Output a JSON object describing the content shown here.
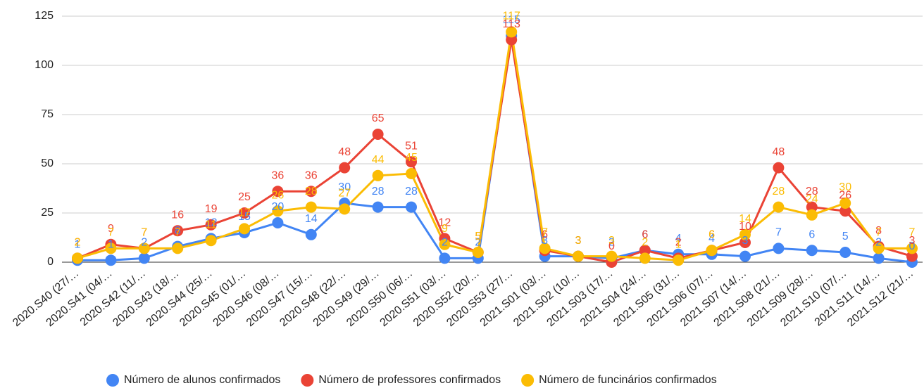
{
  "chart_data": {
    "type": "line",
    "categories": [
      "2020.S40 (27/…",
      "2020.S41 (04/…",
      "2020.S42 (11/…",
      "2020.S43 (18/…",
      "2020.S44 (25/…",
      "2020.S45 (01/…",
      "2020.S46 (08/…",
      "2020.S47 (15/…",
      "2020.S48 (22/…",
      "2020.S49 (29/…",
      "2020.S50 (06/…",
      "2020.S51 (03/…",
      "2020.S52 (20/…",
      "2020.S53 (27/…",
      "2021.S01 (03/…",
      "2021.S02 (10/…",
      "2021.S03 (17/…",
      "2021.S04 (24/…",
      "2021.S05 (31/…",
      "2021.S06 (07/…",
      "2021.S07 (14/…",
      "2021.S08 (21/…",
      "2021.S09 (28/…",
      "2021.S10 (07/…",
      "2021.S11 (14/…",
      "2021.S12 (21/…"
    ],
    "series": [
      {
        "name": "Número de alunos confirmados",
        "color": "#4285f4",
        "values": [
          1,
          1,
          2,
          8,
          12,
          15,
          20,
          14,
          30,
          28,
          28,
          2,
          2,
          115,
          3,
          3,
          2,
          6,
          4,
          4,
          3,
          7,
          6,
          5,
          2,
          0
        ]
      },
      {
        "name": "Número de professores confirmados",
        "color": "#ea4335",
        "values": [
          2,
          9,
          7,
          16,
          19,
          25,
          36,
          36,
          48,
          65,
          51,
          12,
          5,
          113,
          6,
          3,
          0,
          6,
          2,
          6,
          10,
          48,
          28,
          26,
          8,
          3
        ]
      },
      {
        "name": "Número de funcinários confirmados",
        "color": "#fbbc04",
        "values": [
          2,
          7,
          7,
          7,
          11,
          17,
          26,
          28,
          27,
          44,
          45,
          9,
          5,
          117,
          7,
          3,
          3,
          2,
          1,
          6,
          14,
          28,
          24,
          30,
          7,
          7
        ]
      }
    ],
    "ylim": [
      0,
      125
    ],
    "yticks": [
      0,
      25,
      50,
      75,
      100,
      125
    ],
    "grid": true
  }
}
